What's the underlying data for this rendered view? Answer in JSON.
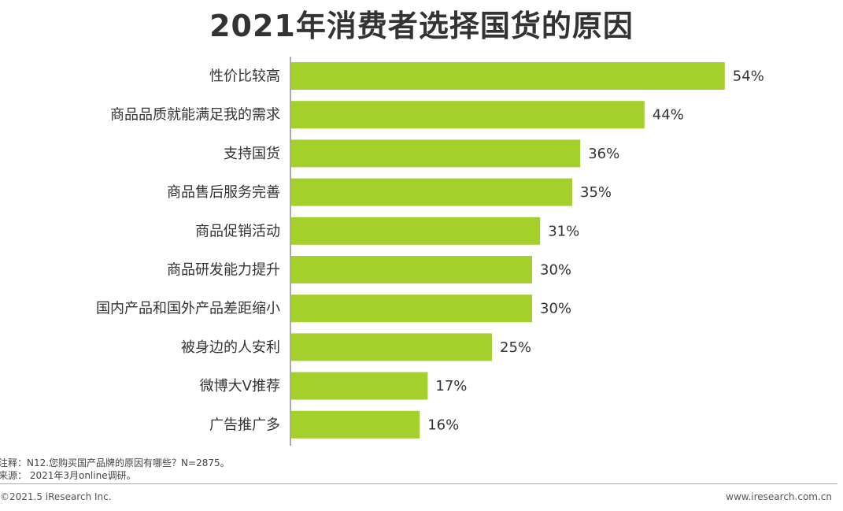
{
  "chart_data": {
    "type": "bar",
    "orientation": "horizontal",
    "title": "2021年消费者选择国货的原因",
    "categories": [
      "性价比较高",
      "商品品质就能满足我的需求",
      "支持国货",
      "商品售后服务完善",
      "商品促销活动",
      "商品研发能力提升",
      "国内产品和国外产品差距缩小",
      "被身边的人安利",
      "微博大V推荐",
      "广告推广多"
    ],
    "values": [
      54,
      44,
      36,
      35,
      31,
      30,
      30,
      25,
      17,
      16
    ],
    "value_labels": [
      "54%",
      "44%",
      "36%",
      "35%",
      "31%",
      "30%",
      "30%",
      "25%",
      "17%",
      "16%"
    ],
    "unit": "%",
    "bar_color": "#a5cf2a",
    "grid": false,
    "legend": "none"
  },
  "footer": {
    "note": "注释：N12.您购买国产品牌的原因有哪些？N=2875。",
    "source": "来源：  2021年3月online调研。",
    "copyright": "©2021.5 iResearch Inc.",
    "website": "www.iresearch.com.cn"
  }
}
